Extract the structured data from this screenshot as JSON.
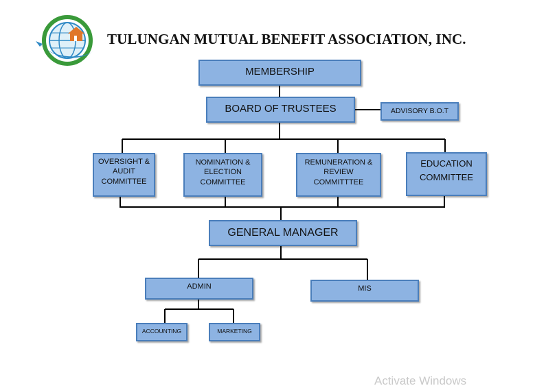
{
  "header": {
    "title": "TULUNGAN MUTUAL BENEFIT ASSOCIATION, INC.",
    "logo_icon": "association-seal-icon",
    "logo_ring_text": "TULUNGAN MUTUAL BENEFIT ASSOCIATION INC."
  },
  "colors": {
    "box_fill": "#8db3e2",
    "box_border": "#4a7ebb",
    "connector": "#000000",
    "logo_green": "#3a9a3a",
    "logo_blue": "#2f89c5",
    "logo_orange": "#e0772b"
  },
  "chart": {
    "membership": "MEMBERSHIP",
    "board": "BOARD OF TRUSTEES",
    "advisory": "ADVISORY B.O.T",
    "committees": {
      "oversight": "OVERSIGHT & AUDIT COMMITTEE",
      "nomination": "NOMINATION & ELECTION COMMITTEE",
      "remuneration": "REMUNERATION & REVIEW COMMITTTEE",
      "education": "EDUCATION COMMITTEE"
    },
    "general_manager": "GENERAL MANAGER",
    "admin": "ADMIN",
    "mis": "MIS",
    "accounting": "ACCOUNTING",
    "marketing": "MARKETING"
  },
  "overlay": {
    "watermark": "Activate Windows"
  }
}
